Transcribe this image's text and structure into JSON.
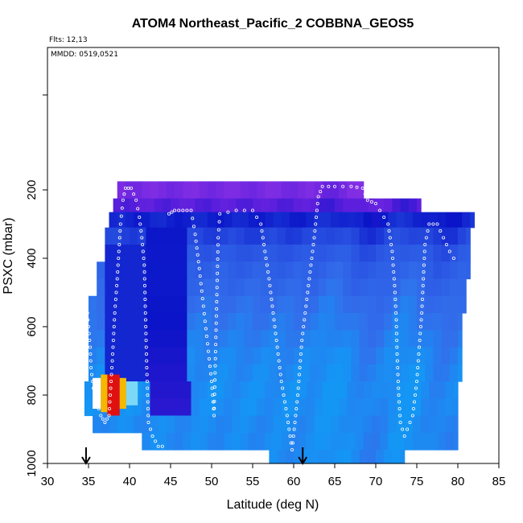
{
  "chart_data": {
    "type": "heatmap",
    "title": "ATOM4 Northeast_Pacific_2 COBBNA_GEOS5",
    "flights_text": "Flts: 12,13",
    "dates_text": "MMDD: 0519,0521",
    "xlabel": "Latitude (deg N)",
    "ylabel": "PSXC (mbar)",
    "xlim": [
      30,
      85
    ],
    "ylim": [
      1000,
      0
    ],
    "xticks": [
      30,
      35,
      40,
      45,
      50,
      55,
      60,
      65,
      70,
      75,
      80,
      85
    ],
    "yticks": [
      200,
      400,
      600,
      800,
      1000
    ],
    "ytick_labels": [
      "200",
      "400",
      "600",
      "800",
      "1000"
    ],
    "arrows_latitude": [
      34.7,
      61.1
    ],
    "colors": {
      "high": "#7a2ad8",
      "upper": "#0a14c8",
      "mid": "#3a6ae8",
      "lower": "#1a8ef2",
      "hot": "#e01010",
      "warm": "#f5b800",
      "white": "#ffffff"
    },
    "levels": [
      {
        "p_top": 175,
        "p_bot": 225,
        "lat_min": 38.5,
        "lat_max": 68.5,
        "v": 0.05
      },
      {
        "p_top": 225,
        "p_bot": 265,
        "lat_min": 38.0,
        "lat_max": 75.5,
        "v": 0.12
      },
      {
        "p_top": 265,
        "p_bot": 310,
        "lat_min": 37.5,
        "lat_max": 82.0,
        "v": 0.25
      },
      {
        "p_top": 310,
        "p_bot": 360,
        "lat_min": 37.0,
        "lat_max": 81.5,
        "v": 0.32
      },
      {
        "p_top": 360,
        "p_bot": 410,
        "lat_min": 37.0,
        "lat_max": 81.5,
        "v": 0.38
      },
      {
        "p_top": 410,
        "p_bot": 460,
        "lat_min": 36.0,
        "lat_max": 81.5,
        "v": 0.42
      },
      {
        "p_top": 460,
        "p_bot": 510,
        "lat_min": 36.0,
        "lat_max": 81.0,
        "v": 0.45
      },
      {
        "p_top": 510,
        "p_bot": 560,
        "lat_min": 35.0,
        "lat_max": 81.0,
        "v": 0.48
      },
      {
        "p_top": 560,
        "p_bot": 610,
        "lat_min": 35.0,
        "lat_max": 80.5,
        "v": 0.5
      },
      {
        "p_top": 610,
        "p_bot": 660,
        "lat_min": 35.0,
        "lat_max": 80.5,
        "v": 0.52
      },
      {
        "p_top": 660,
        "p_bot": 710,
        "lat_min": 35.0,
        "lat_max": 80.5,
        "v": 0.54
      },
      {
        "p_top": 710,
        "p_bot": 760,
        "lat_min": 35.0,
        "lat_max": 80.5,
        "v": 0.55
      },
      {
        "p_top": 760,
        "p_bot": 810,
        "lat_min": 34.5,
        "lat_max": 80.0,
        "v": 0.56
      },
      {
        "p_top": 810,
        "p_bot": 860,
        "lat_min": 34.5,
        "lat_max": 80.0,
        "v": 0.56
      },
      {
        "p_top": 860,
        "p_bot": 910,
        "lat_min": 35.5,
        "lat_max": 80.0,
        "v": 0.55
      },
      {
        "p_top": 910,
        "p_bot": 960,
        "lat_min": 41.5,
        "lat_max": 80.0,
        "v": 0.55
      },
      {
        "p_top": 960,
        "p_bot": 1000,
        "lat_min": 57.0,
        "lat_max": 73.5,
        "v": 0.55
      }
    ],
    "blue_column": {
      "lat_min": 42.5,
      "lat_max": 47.0,
      "p_top": 300,
      "p_bot": 880
    },
    "hotspot": [
      {
        "lat_min": 35.5,
        "lat_max": 36.5,
        "p_top": 750,
        "p_bot": 840,
        "color": "#ffffff"
      },
      {
        "lat_min": 36.5,
        "lat_max": 37.3,
        "p_top": 740,
        "p_bot": 850,
        "color": "#f5b800"
      },
      {
        "lat_min": 37.3,
        "lat_max": 38.8,
        "p_top": 740,
        "p_bot": 860,
        "color": "#e01010"
      },
      {
        "lat_min": 38.8,
        "lat_max": 39.6,
        "p_top": 750,
        "p_bot": 840,
        "color": "#f5b800"
      },
      {
        "lat_min": 39.6,
        "lat_max": 41.0,
        "p_top": 760,
        "p_bot": 830,
        "color": "#7dd8f5"
      }
    ],
    "flight_track_1": [
      [
        34.8,
        540
      ],
      [
        35.0,
        600
      ],
      [
        35.2,
        660
      ],
      [
        35.3,
        720
      ],
      [
        35.6,
        780
      ],
      [
        36.0,
        820
      ],
      [
        36.5,
        860
      ],
      [
        37.0,
        880
      ],
      [
        37.5,
        860
      ],
      [
        37.9,
        700
      ],
      [
        38.2,
        560
      ],
      [
        38.5,
        460
      ],
      [
        38.7,
        380
      ],
      [
        38.9,
        300
      ],
      [
        39.2,
        230
      ],
      [
        39.5,
        195
      ],
      [
        40.2,
        195
      ],
      [
        40.8,
        230
      ],
      [
        41.2,
        280
      ],
      [
        41.5,
        340
      ],
      [
        41.8,
        420
      ],
      [
        41.9,
        520
      ],
      [
        42.0,
        620
      ],
      [
        42.1,
        720
      ],
      [
        42.2,
        800
      ],
      [
        42.3,
        880
      ],
      [
        42.8,
        920
      ],
      [
        43.5,
        950
      ],
      [
        44.5,
        950
      ]
    ],
    "flight_track_2": [
      [
        44.8,
        270
      ],
      [
        45.5,
        260
      ],
      [
        46.5,
        260
      ],
      [
        47.5,
        260
      ],
      [
        48.0,
        330
      ],
      [
        48.5,
        430
      ],
      [
        49.0,
        540
      ],
      [
        49.5,
        650
      ],
      [
        50.0,
        760
      ],
      [
        50.3,
        860
      ],
      [
        50.8,
        340
      ],
      [
        51.0,
        270
      ],
      [
        53.0,
        260
      ],
      [
        55.0,
        260
      ],
      [
        56.0,
        300
      ],
      [
        56.5,
        380
      ],
      [
        57.0,
        460
      ],
      [
        57.5,
        560
      ],
      [
        58.0,
        660
      ],
      [
        58.5,
        760
      ],
      [
        59.2,
        860
      ],
      [
        59.8,
        960
      ],
      [
        60.5,
        800
      ],
      [
        61.0,
        640
      ],
      [
        61.5,
        540
      ],
      [
        62.0,
        440
      ],
      [
        62.5,
        340
      ],
      [
        63.0,
        220
      ],
      [
        63.5,
        190
      ],
      [
        65.0,
        190
      ],
      [
        67.0,
        190
      ],
      [
        68.4,
        195
      ],
      [
        69.0,
        230
      ],
      [
        70.0,
        240
      ],
      [
        71.5,
        300
      ],
      [
        72.0,
        380
      ],
      [
        72.3,
        480
      ],
      [
        72.5,
        580
      ],
      [
        72.6,
        680
      ],
      [
        72.8,
        800
      ],
      [
        73.0,
        880
      ],
      [
        73.5,
        920
      ],
      [
        74.5,
        860
      ],
      [
        75.0,
        760
      ],
      [
        75.3,
        660
      ],
      [
        75.6,
        560
      ],
      [
        75.8,
        460
      ],
      [
        76.0,
        360
      ],
      [
        76.5,
        300
      ],
      [
        77.5,
        300
      ],
      [
        79.0,
        380
      ],
      [
        80.0,
        420
      ]
    ]
  }
}
